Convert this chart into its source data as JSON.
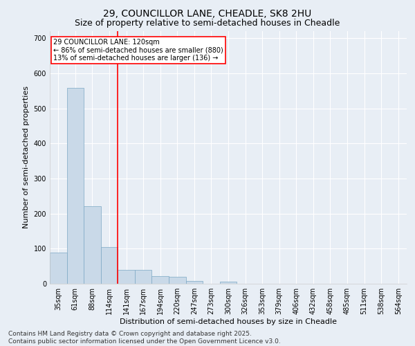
{
  "title_line1": "29, COUNCILLOR LANE, CHEADLE, SK8 2HU",
  "title_line2": "Size of property relative to semi-detached houses in Cheadle",
  "xlabel": "Distribution of semi-detached houses by size in Cheadle",
  "ylabel": "Number of semi-detached properties",
  "bar_labels": [
    "35sqm",
    "61sqm",
    "88sqm",
    "114sqm",
    "141sqm",
    "167sqm",
    "194sqm",
    "220sqm",
    "247sqm",
    "273sqm",
    "300sqm",
    "326sqm",
    "353sqm",
    "379sqm",
    "406sqm",
    "432sqm",
    "458sqm",
    "485sqm",
    "511sqm",
    "538sqm",
    "564sqm"
  ],
  "values": [
    88,
    558,
    220,
    105,
    40,
    40,
    22,
    20,
    7,
    0,
    6,
    0,
    0,
    0,
    0,
    0,
    0,
    0,
    0,
    0,
    0
  ],
  "bar_color": "#c9d9e8",
  "bar_edge_color": "#7ba7c4",
  "vline_x": 3.5,
  "vline_color": "red",
  "annotation_text": "29 COUNCILLOR LANE: 120sqm\n← 86% of semi-detached houses are smaller (880)\n13% of semi-detached houses are larger (136) →",
  "annotation_box_color": "white",
  "annotation_box_edge_color": "red",
  "ylim": [
    0,
    720
  ],
  "yticks": [
    0,
    100,
    200,
    300,
    400,
    500,
    600,
    700
  ],
  "footer_line1": "Contains HM Land Registry data © Crown copyright and database right 2025.",
  "footer_line2": "Contains public sector information licensed under the Open Government Licence v3.0.",
  "background_color": "#e8eef5",
  "plot_background_color": "#e8eef5",
  "grid_color": "white",
  "title_fontsize": 10,
  "subtitle_fontsize": 9,
  "axis_label_fontsize": 8,
  "tick_fontsize": 7,
  "annotation_fontsize": 7,
  "footer_fontsize": 6.5
}
